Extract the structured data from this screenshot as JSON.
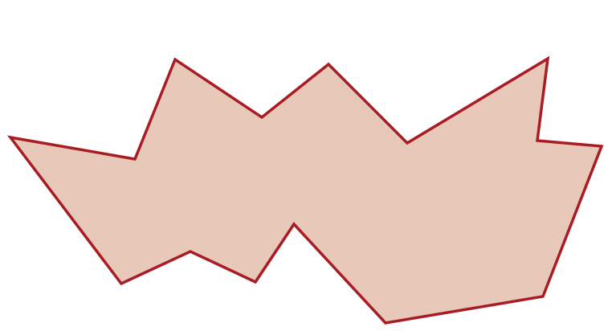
{
  "figure": {
    "shape": "irregular-polygon",
    "fill_color": "#E8C8B8",
    "stroke_color": "#A81C24"
  }
}
